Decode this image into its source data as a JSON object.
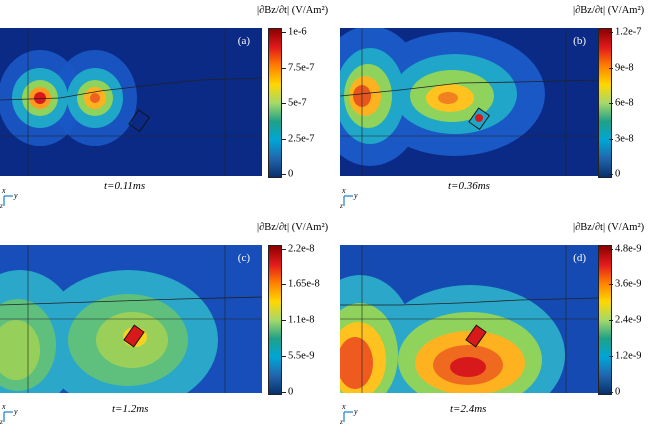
{
  "colorbar_units": "|∂Bz/∂t| (V/Am²)",
  "axis_labels": {
    "x": "x",
    "y": "y",
    "z": "z"
  },
  "panels": [
    {
      "label": "(a)",
      "time": "t=0.11ms",
      "ticks": [
        "1e-6",
        "7.5e-7",
        "5e-7",
        "2.5e-7",
        "0"
      ]
    },
    {
      "label": "(b)",
      "time": "t=0.36ms",
      "ticks": [
        "1.2e-7",
        "9e-8",
        "6e-8",
        "3e-8",
        "0"
      ]
    },
    {
      "label": "(c)",
      "time": "t=1.2ms",
      "ticks": [
        "2.2e-8",
        "1.65e-8",
        "1.1e-8",
        "5.5e-9",
        "0"
      ]
    },
    {
      "label": "(d)",
      "time": "t=2.4ms",
      "ticks": [
        "4.8e-9",
        "3.6e-9",
        "2.4e-9",
        "1.2e-9",
        "0"
      ]
    }
  ],
  "colormap": [
    "#8b0000",
    "#e31a1c",
    "#ff7f00",
    "#ffd700",
    "#a6d96a",
    "#1fa187",
    "#00a6d6",
    "#2166ac",
    "#08306b"
  ]
}
